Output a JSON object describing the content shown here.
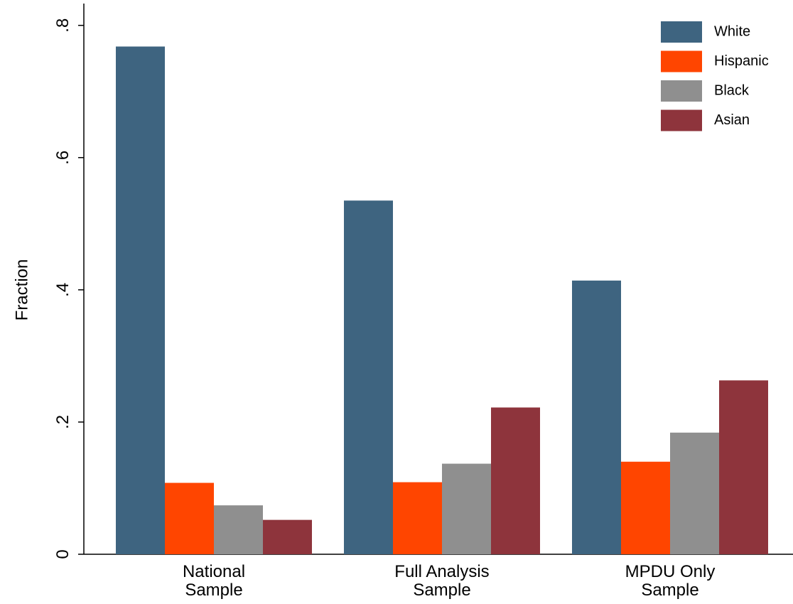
{
  "chart_data": {
    "type": "bar",
    "y_label": "Fraction",
    "categories": [
      "National\nSample",
      "Full Analysis\nSample",
      "MPDU Only\nSample"
    ],
    "series": [
      {
        "name": "White",
        "color": "#3e6480",
        "values": [
          0.768,
          0.535,
          0.414
        ]
      },
      {
        "name": "Hispanic",
        "color": "#ff4500",
        "values": [
          0.108,
          0.109,
          0.14
        ]
      },
      {
        "name": "Black",
        "color": "#8f8f8f",
        "values": [
          0.074,
          0.137,
          0.184
        ]
      },
      {
        "name": "Asian",
        "color": "#8e343c",
        "values": [
          0.052,
          0.222,
          0.263
        ]
      }
    ],
    "ylim": [
      0,
      0.833
    ],
    "yticks": [
      0,
      {
        "value": 0.2,
        "label": ".2"
      },
      {
        "value": 0.4,
        "label": ".4"
      },
      {
        "value": 0.6,
        "label": ".6"
      },
      {
        "value": 0.8,
        "label": ".8"
      }
    ],
    "grid": false,
    "legend": "top-right"
  }
}
